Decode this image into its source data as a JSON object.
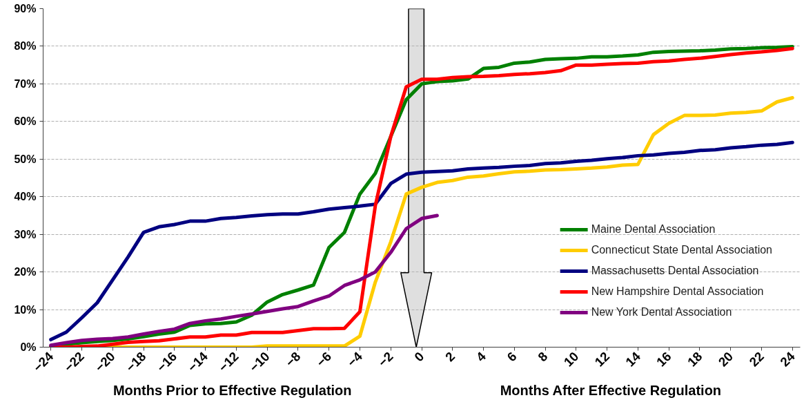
{
  "chart_data": {
    "type": "line",
    "x": [
      -24,
      -23,
      -22,
      -21,
      -20,
      -19,
      -18,
      -17,
      -16,
      -15,
      -14,
      -13,
      -12,
      -11,
      -10,
      -9,
      -8,
      -7,
      -6,
      -5,
      -4,
      -3,
      -2,
      -1,
      0,
      1,
      2,
      3,
      4,
      5,
      6,
      7,
      8,
      9,
      10,
      11,
      12,
      13,
      14,
      15,
      16,
      17,
      18,
      19,
      20,
      21,
      22,
      23,
      24
    ],
    "xlim": [
      -24.5,
      24.5
    ],
    "xticks": [
      -24,
      -22,
      -20,
      -18,
      -16,
      -14,
      -12,
      -10,
      -8,
      -6,
      -4,
      -2,
      0,
      2,
      4,
      6,
      8,
      10,
      12,
      14,
      16,
      18,
      20,
      22,
      24
    ],
    "ylim": [
      0,
      90
    ],
    "yticks": [
      {
        "value": 0,
        "label": "0%"
      },
      {
        "value": 10,
        "label": "10%"
      },
      {
        "value": 20,
        "label": "20%"
      },
      {
        "value": 30,
        "label": "30%"
      },
      {
        "value": 40,
        "label": "40%"
      },
      {
        "value": 50,
        "label": "50%"
      },
      {
        "value": 60,
        "label": "60%"
      },
      {
        "value": 70,
        "label": "70%"
      },
      {
        "value": 80,
        "label": "80%"
      },
      {
        "value": 90,
        "label": "90%"
      }
    ],
    "grid": "y",
    "legend": "right",
    "line_style": "solid",
    "marker": "none",
    "annotations": [
      "Months Prior to Effective Regulation",
      "Months After Effective Regulation"
    ],
    "series": [
      {
        "name": "Maine Dental Association",
        "color": "#008000",
        "values": [
          0.3,
          0.8,
          1.2,
          1.5,
          1.8,
          2.2,
          2.8,
          3.5,
          4,
          5.8,
          6.2,
          6.3,
          6.7,
          8.5,
          12,
          14,
          15.2,
          16.5,
          26.5,
          30.5,
          40.7,
          46.2,
          56,
          65.8,
          70,
          70.6,
          70.8,
          71.3,
          74.1,
          74.4,
          75.5,
          75.8,
          76.5,
          76.7,
          76.8,
          77.2,
          77.2,
          77.4,
          77.7,
          78.4,
          78.6,
          78.7,
          78.8,
          79,
          79.3,
          79.4,
          79.6,
          79.7,
          79.9
        ]
      },
      {
        "name": "Connecticut State Dental Association",
        "color": "#ffcc00",
        "values": [
          null,
          null,
          null,
          0,
          0,
          0,
          0,
          0,
          0,
          0,
          0,
          0,
          0,
          0,
          0.3,
          0.3,
          0.3,
          0.3,
          0.3,
          0.3,
          2.9,
          17.3,
          28,
          40.7,
          42.5,
          43.8,
          44.3,
          45.2,
          45.5,
          46.1,
          46.6,
          46.8,
          47.1,
          47.2,
          47.4,
          47.6,
          47.9,
          48.4,
          48.6,
          56.5,
          59.5,
          61.6,
          61.6,
          61.7,
          62.2,
          62.4,
          62.8,
          65.2,
          66.3
        ]
      },
      {
        "name": "Massachusetts Dental Association",
        "color": "#000080",
        "values": [
          2,
          4,
          7.8,
          11.8,
          17.9,
          24,
          30.5,
          32,
          32.6,
          33.5,
          33.5,
          34.2,
          34.5,
          34.9,
          35.2,
          35.4,
          35.4,
          36,
          36.7,
          37.1,
          37.5,
          38,
          43.5,
          46,
          46.5,
          46.7,
          46.9,
          47.4,
          47.6,
          47.8,
          48.1,
          48.3,
          48.8,
          49,
          49.4,
          49.7,
          50.1,
          50.4,
          50.9,
          51.1,
          51.5,
          51.8,
          52.3,
          52.5,
          53,
          53.3,
          53.7,
          53.9,
          54.4
        ]
      },
      {
        "name": "New Hampshire Dental Association",
        "color": "#ff0000",
        "values": [
          0,
          0,
          0.2,
          0.3,
          0.8,
          1.3,
          1.5,
          1.7,
          2.2,
          2.7,
          2.7,
          3.2,
          3.2,
          3.9,
          3.9,
          3.9,
          4.4,
          4.9,
          4.9,
          5,
          9.4,
          37.6,
          56,
          69.2,
          71.2,
          71.2,
          71.7,
          71.9,
          72,
          72.2,
          72.5,
          72.7,
          73,
          73.5,
          75,
          75,
          75.2,
          75.4,
          75.5,
          75.9,
          76.1,
          76.5,
          76.8,
          77.3,
          77.8,
          78.2,
          78.5,
          78.9,
          79.4
        ]
      },
      {
        "name": "New York Dental Association",
        "color": "#800080",
        "values": [
          0.5,
          1.2,
          1.8,
          2.1,
          2.3,
          2.7,
          3.5,
          4.2,
          4.8,
          6.3,
          7,
          7.5,
          8.2,
          8.8,
          9.5,
          10.2,
          10.8,
          12.3,
          13.6,
          16.4,
          17.9,
          20,
          25.2,
          31.5,
          34.2,
          35,
          null,
          null,
          null,
          null,
          null,
          null,
          null,
          null,
          null,
          null,
          null,
          null,
          null,
          null,
          null,
          null,
          null,
          null,
          null,
          null,
          null,
          null,
          null
        ]
      }
    ]
  }
}
